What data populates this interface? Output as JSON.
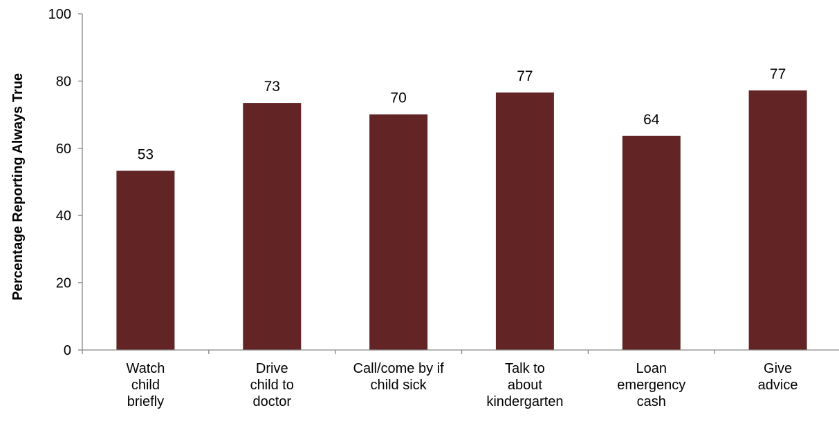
{
  "chart_data": {
    "type": "bar",
    "title": "",
    "xlabel": "",
    "ylabel": "Percentage Reporting Always True",
    "ylim": [
      0,
      100
    ],
    "yticks": [
      0,
      20,
      40,
      60,
      80,
      100
    ],
    "grid": false,
    "legend": "none",
    "categories": [
      [
        "Watch",
        "child",
        "briefly"
      ],
      [
        "Drive",
        "child to",
        "doctor"
      ],
      [
        "Call/come by if",
        "child sick"
      ],
      [
        "Talk to",
        "about",
        "kindergarten"
      ],
      [
        "Loan",
        "emergency",
        "cash"
      ],
      [
        "Give",
        "advice"
      ]
    ],
    "values": [
      53.3,
      73.5,
      70.1,
      76.6,
      63.7,
      77.2
    ],
    "data_labels": [
      "53",
      "73",
      "70",
      "77",
      "64",
      "77"
    ],
    "bar_color": "#632425",
    "axis_color": "#868686"
  }
}
